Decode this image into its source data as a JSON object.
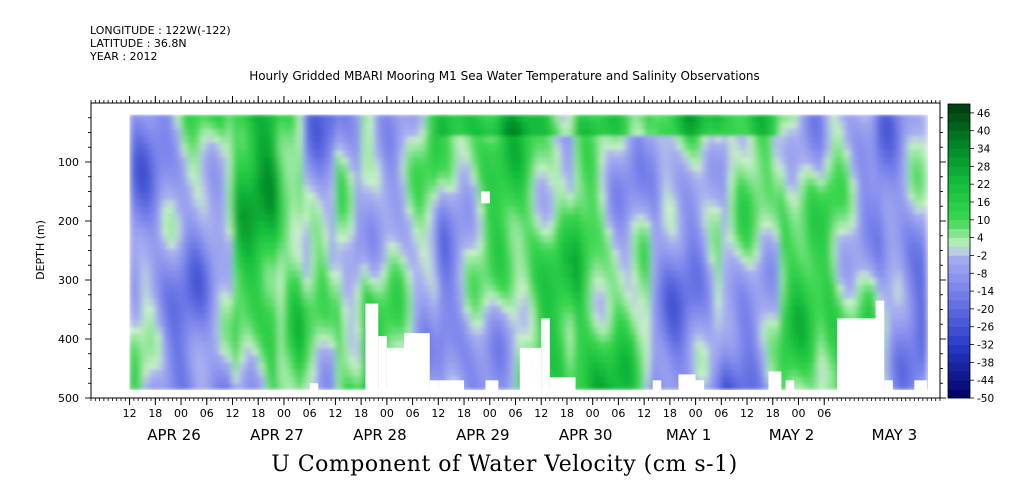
{
  "header": {
    "longitude": "LONGITUDE : 122W(-122)",
    "latitude": "LATITUDE : 36.8N",
    "year": "YEAR : 2012",
    "title": "Hourly Gridded MBARI Mooring M1 Sea Water Temperature and Salinity Observations"
  },
  "footer": {
    "variable_title": "U Component of Water Velocity (cm s-1)"
  },
  "chart_data": {
    "type": "heatmap",
    "title": "Hourly Gridded MBARI Mooring M1 Sea Water Temperature and Salinity Observations",
    "variable": "U Component of Water Velocity (cm s-1)",
    "ylabel": "DEPTH (m)",
    "y_ticks": [
      100,
      200,
      300,
      400,
      500
    ],
    "ylim": [
      0,
      500
    ],
    "y_inverted": true,
    "x_hour_ticks": [
      "12",
      "18",
      "00",
      "06",
      "12",
      "18",
      "00",
      "06",
      "12",
      "18",
      "00",
      "06",
      "12",
      "18",
      "00",
      "06",
      "12",
      "18",
      "00",
      "06",
      "12",
      "18",
      "00",
      "06",
      "12",
      "18",
      "00",
      "06"
    ],
    "x_date_labels": [
      "APR 26",
      "APR 27",
      "APR 28",
      "APR 29",
      "APR 30",
      "MAY 1",
      "MAY 2",
      "MAY 3"
    ],
    "xlim_hours": [
      -21,
      177
    ],
    "data_range_hours": [
      -12,
      174
    ],
    "data_depth_range": [
      20,
      485
    ],
    "colorbar": {
      "labels": [
        "46",
        "40",
        "34",
        "28",
        "22",
        "16",
        "10",
        "4",
        "-2",
        "-8",
        "-14",
        "-20",
        "-26",
        "-32",
        "-38",
        "-44",
        "-50"
      ],
      "min": -50,
      "max": 49,
      "step": 3,
      "low_color": "#000066",
      "mid_low_color": "#aab0f0",
      "mid_high_color": "#c8f0c8",
      "high_color": "#003a10"
    },
    "missing_data_color": "#ffffff",
    "pattern_note": "Alternating bands of positive (green) and negative (blue) velocity, tilted in time with depth; white gaps mark missing data near bottom."
  }
}
